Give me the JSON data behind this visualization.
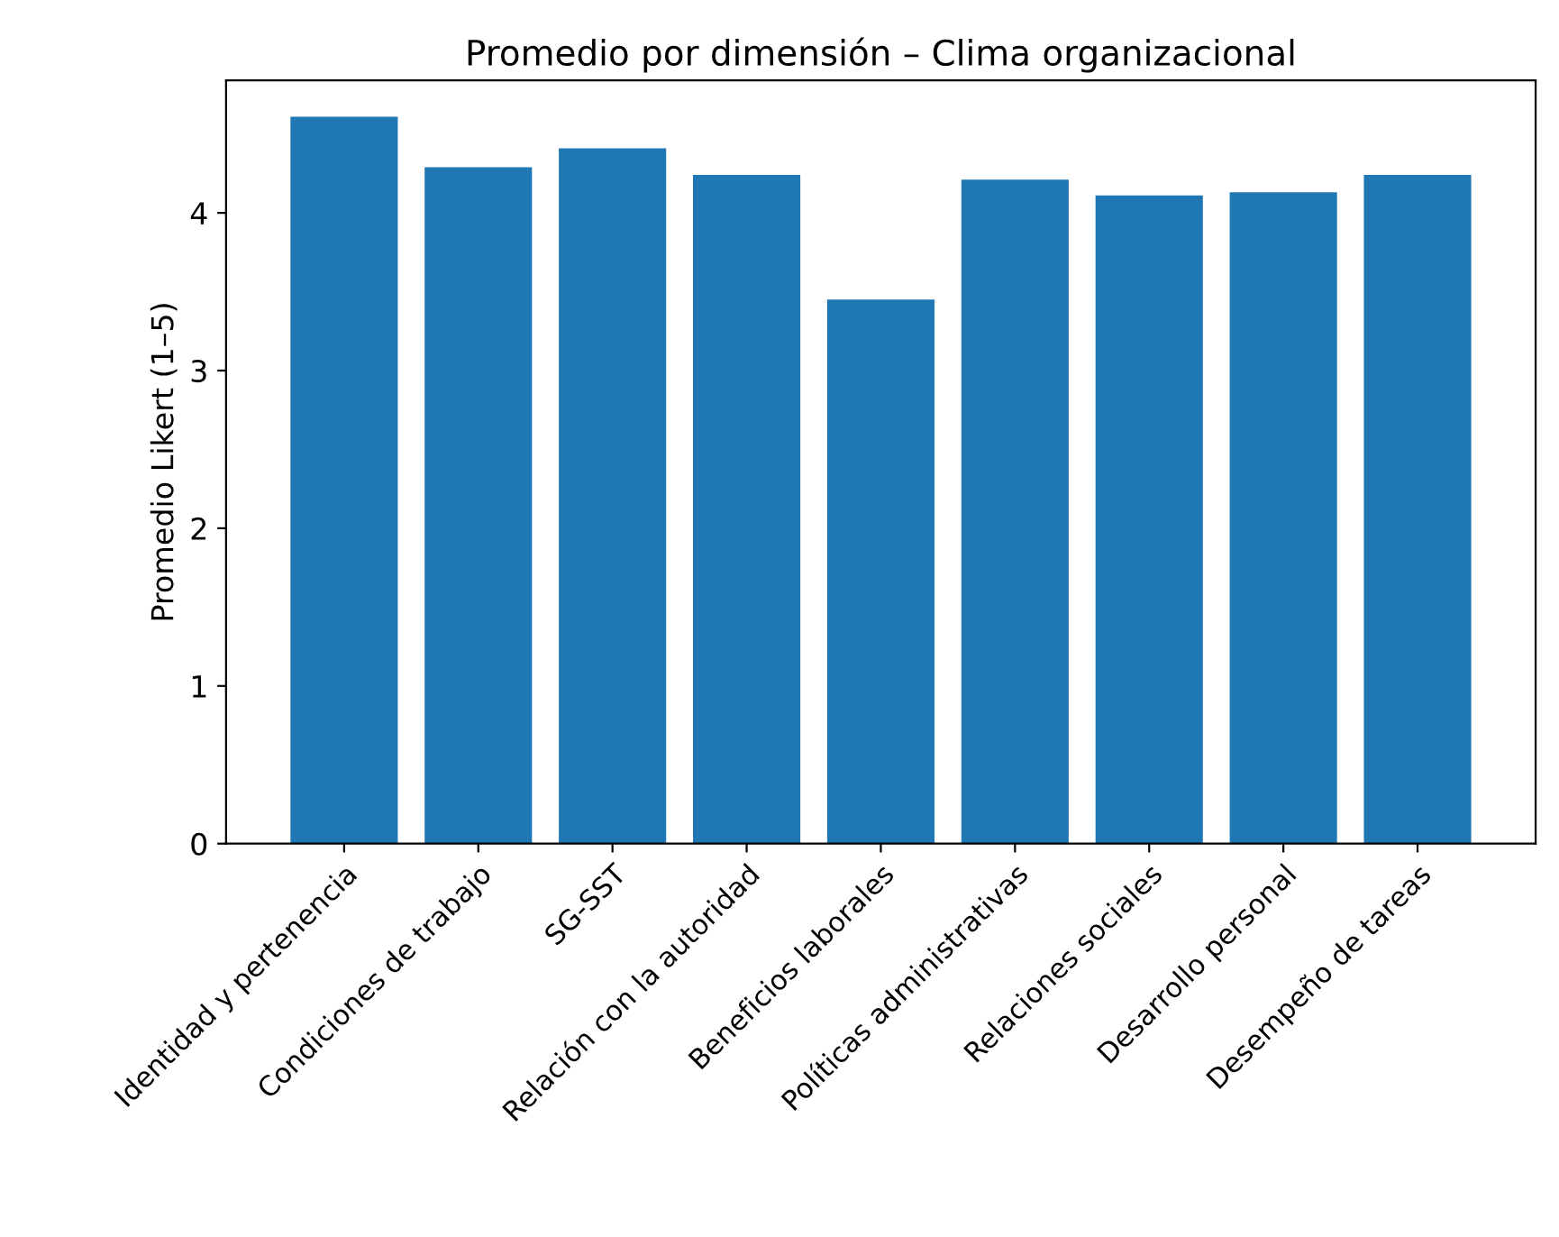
{
  "chart_data": {
    "type": "bar",
    "title": "Promedio por dimensión – Clima organizacional",
    "ylabel": "Promedio Likert (1–5)",
    "categories": [
      "Identidad y pertenencia",
      "Condiciones de trabajo",
      "SG-SST",
      "Relación con la autoridad",
      "Beneficios laborales",
      "Políticas administrativas",
      "Relaciones sociales",
      "Desarrollo personal",
      "Desempeño de tareas"
    ],
    "values": [
      4.61,
      4.29,
      4.41,
      4.24,
      3.45,
      4.21,
      4.11,
      4.13,
      4.24
    ],
    "color": "#1f77b4",
    "ylim": [
      0,
      4.84
    ],
    "yticks": [
      0,
      1,
      2,
      3,
      4
    ],
    "grid": false,
    "legend": false
  }
}
